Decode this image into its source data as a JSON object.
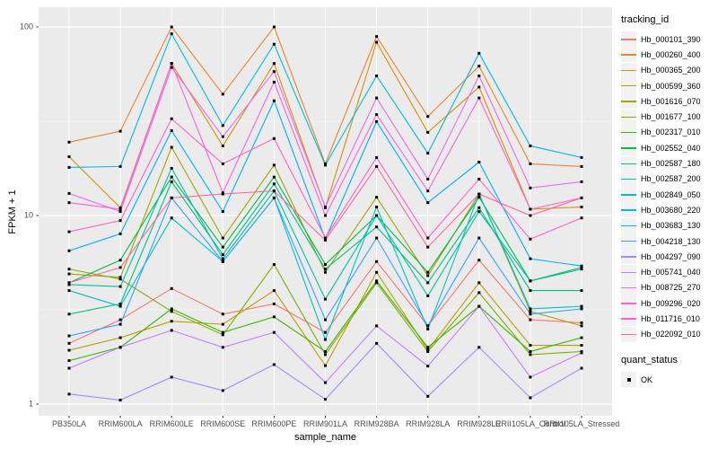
{
  "chart_data": {
    "type": "line",
    "title": "",
    "xlabel": "sample_name",
    "ylabel": "FPKM + 1",
    "y_scale": "log10",
    "ylim": [
      1,
      105
    ],
    "y_ticks": [
      100,
      10,
      1
    ],
    "y_minor_ticks": [
      31.623,
      3.1623
    ],
    "grid": true,
    "panel_background": "#ebebeb",
    "grid_color": "#ffffff",
    "tick_text_color": "#4d4d4d",
    "legend_position": "right",
    "legend_title": "tracking_id",
    "point_marker": {
      "legend_title": "quant_status",
      "label": "OK",
      "shape": "square",
      "color": "#000000"
    },
    "x_categories": [
      "PB350LA",
      "RRIM600LA",
      "RRIM600LE",
      "RRIM600SE",
      "RRIM600PE",
      "RRIM901LA",
      "RRIM928BA",
      "RRIM928LA",
      "RRIM928LE",
      "RRII105LA_Control",
      "RRII105LA_Stressed"
    ],
    "series": [
      {
        "name": "Hb_000101_390",
        "color": "#F8766D",
        "values": [
          2.1,
          2.8,
          4.1,
          3.0,
          3.4,
          2.4,
          5.7,
          2.6,
          5.8,
          2.8,
          2.7
        ]
      },
      {
        "name": "Hb_000260_400",
        "color": "#EA8331",
        "values": [
          24.5,
          28,
          100,
          44,
          100,
          18.8,
          89,
          33.5,
          62,
          18.8,
          18.2
        ]
      },
      {
        "name": "Hb_000365_200",
        "color": "#D89000",
        "values": [
          20.5,
          11,
          64,
          23.4,
          64,
          11,
          83,
          27.6,
          48,
          10.8,
          11.1
        ]
      },
      {
        "name": "Hb_000599_360",
        "color": "#C09B00",
        "values": [
          1.93,
          2.25,
          2.75,
          2.65,
          4.0,
          1.6,
          5.0,
          1.94,
          4.4,
          2.05,
          2.05
        ]
      },
      {
        "name": "Hb_001616_070",
        "color": "#A3A500",
        "values": [
          4.9,
          4.7,
          23,
          7.6,
          18.5,
          5.0,
          12.5,
          4.8,
          13,
          3.1,
          2.6
        ]
      },
      {
        "name": "Hb_001677_100",
        "color": "#7CAE00",
        "values": [
          5.2,
          4.6,
          3.1,
          2.33,
          5.5,
          1.83,
          4.4,
          1.9,
          3.9,
          1.83,
          1.9
        ]
      },
      {
        "name": "Hb_002317_010",
        "color": "#39B600",
        "values": [
          1.7,
          2.0,
          3.2,
          2.4,
          2.9,
          1.9,
          4.5,
          2.0,
          3.3,
          1.9,
          2.25
        ]
      },
      {
        "name": "Hb_002552_040",
        "color": "#00BB4E",
        "values": [
          4.4,
          5.8,
          16,
          6.8,
          16,
          5.5,
          10,
          5.0,
          12.5,
          4.5,
          5.3
        ]
      },
      {
        "name": "Hb_002587_180",
        "color": "#00C087",
        "values": [
          3.0,
          3.4,
          15.1,
          6.2,
          14.7,
          5.2,
          8.7,
          4.4,
          11,
          4.0,
          4.0
        ]
      },
      {
        "name": "Hb_002587_200",
        "color": "#00C1A3",
        "values": [
          4.3,
          4.2,
          17.8,
          5.9,
          13.5,
          3.6,
          10,
          3.75,
          10.5,
          4.5,
          5.2
        ]
      },
      {
        "name": "Hb_002849_050",
        "color": "#00BFC4",
        "values": [
          4.0,
          3.3,
          9.7,
          5.7,
          12.4,
          2.2,
          11.1,
          2.5,
          13,
          3.2,
          3.3
        ]
      },
      {
        "name": "Hb_003680_220",
        "color": "#00BAE0",
        "values": [
          18,
          18.2,
          92,
          30,
          81,
          18.5,
          55,
          21.4,
          72.5,
          23.4,
          20.3
        ]
      },
      {
        "name": "Hb_003683_130",
        "color": "#00B0F6",
        "values": [
          6.5,
          8.0,
          28.2,
          10.5,
          40.6,
          7.5,
          31.5,
          11.7,
          19.2,
          5.9,
          5.4
        ]
      },
      {
        "name": "Hb_004218_130",
        "color": "#35A2FF",
        "values": [
          2.3,
          2.65,
          12.4,
          5.7,
          12.4,
          2.8,
          7.6,
          2.6,
          7.6,
          3.0,
          3.2
        ]
      },
      {
        "name": "Hb_004297_090",
        "color": "#9590FF",
        "values": [
          1.13,
          1.05,
          1.39,
          1.18,
          1.62,
          1.06,
          2.1,
          1.1,
          2.0,
          1.08,
          1.55
        ]
      },
      {
        "name": "Hb_005741_040",
        "color": "#C77CFF",
        "values": [
          1.55,
          2.0,
          2.46,
          2.0,
          2.4,
          1.3,
          2.6,
          1.59,
          3.3,
          1.39,
          1.87
        ]
      },
      {
        "name": "Hb_008725_270",
        "color": "#E76BF3",
        "values": [
          13.1,
          10.5,
          61,
          26.2,
          58,
          11.1,
          42,
          15.6,
          55,
          14,
          15.1
        ]
      },
      {
        "name": "Hb_009296_020",
        "color": "#FA62DB",
        "values": [
          11.7,
          10.8,
          64,
          13.2,
          51,
          10,
          34.3,
          13.5,
          42,
          10.8,
          12.4
        ]
      },
      {
        "name": "Hb_011716_010",
        "color": "#FF61CC",
        "values": [
          8.2,
          9.4,
          32.6,
          18.8,
          25.6,
          7.6,
          20.3,
          7.6,
          15.6,
          7.5,
          9.7
        ]
      },
      {
        "name": "Hb_022092_010",
        "color": "#FF67A4",
        "values": [
          4.4,
          5.3,
          12.4,
          13,
          13.5,
          7.4,
          18.2,
          6.8,
          13,
          10,
          12.4
        ]
      }
    ]
  }
}
